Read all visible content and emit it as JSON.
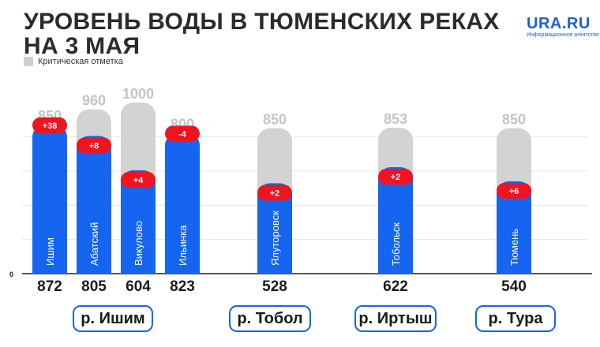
{
  "title": {
    "line1": "УРОВЕНЬ ВОДЫ В ТЮМЕНСКИХ РЕКАХ",
    "line2": "НА 3 МАЯ"
  },
  "brand": {
    "name": "URA.RU",
    "sub": "Информационное агентство"
  },
  "legend": {
    "label": "Критическая отметка"
  },
  "colors": {
    "level": "#1565f0",
    "critical": "#d3d3d3",
    "change": "#f0141e",
    "grid": "#e6e6e6"
  },
  "chart_data": {
    "type": "bar",
    "title": "УРОВЕНЬ ВОДЫ В ТЮМЕНСКИХ РЕКАХ НА 3 МАЯ",
    "zero_label": "0",
    "ylim": [
      0,
      1000
    ],
    "grid": true,
    "legend_position": "top-left",
    "stations": [
      {
        "name": "Ишим",
        "river": "р. Ишим",
        "level": 872,
        "critical": 850,
        "change": "+38"
      },
      {
        "name": "Абатский",
        "river": "р. Ишим",
        "level": 805,
        "critical": 960,
        "change": "+8"
      },
      {
        "name": "Викулово",
        "river": "р. Ишим",
        "level": 604,
        "critical": 1000,
        "change": "+4"
      },
      {
        "name": "Ильинка",
        "river": "р. Ишим",
        "level": 823,
        "critical": 800,
        "change": "-4"
      },
      {
        "name": "Ялуторовск",
        "river": "р. Тобол",
        "level": 528,
        "critical": 850,
        "change": "+2"
      },
      {
        "name": "Тобольск",
        "river": "р. Иртыш",
        "level": 622,
        "critical": 853,
        "change": "+2"
      },
      {
        "name": "Тюмень",
        "river": "р. Тура",
        "level": 540,
        "critical": 850,
        "change": "+6"
      }
    ],
    "rivers": [
      "р. Ишим",
      "р. Тобол",
      "р. Иртыш",
      "р. Тура"
    ]
  }
}
